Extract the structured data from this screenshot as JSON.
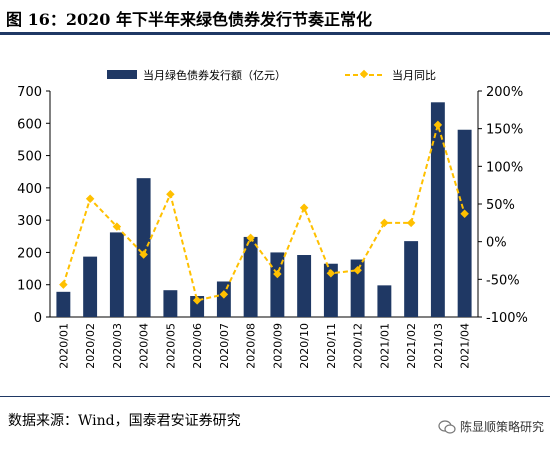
{
  "title": "图 16：2020 年下半年来绿色债券发行节奏正常化",
  "source": "数据来源：Wind，国泰君安证券研究",
  "watermark": "陈显顺策略研究",
  "chart_data": {
    "type": "bar",
    "categories": [
      "2020/01",
      "2020/02",
      "2020/03",
      "2020/04",
      "2020/05",
      "2020/06",
      "2020/07",
      "2020/08",
      "2020/09",
      "2020/10",
      "2020/11",
      "2020/12",
      "2021/01",
      "2021/02",
      "2021/03",
      "2021/04"
    ],
    "series": [
      {
        "name": "当月绿色债券发行额（亿元）",
        "type": "bar",
        "axis": "left",
        "color": "#1f3864",
        "values": [
          78,
          187,
          262,
          430,
          83,
          65,
          110,
          248,
          200,
          192,
          165,
          178,
          98,
          235,
          665,
          580
        ]
      },
      {
        "name": "当月同比",
        "type": "line",
        "axis": "right",
        "color": "#ffc000",
        "values": [
          -57,
          57,
          20,
          -17,
          63,
          -78,
          -70,
          5,
          -43,
          45,
          -42,
          -38,
          25,
          25,
          155,
          37
        ]
      }
    ],
    "y_left": {
      "min": 0,
      "max": 700,
      "ticks": [
        0,
        100,
        200,
        300,
        400,
        500,
        600,
        700
      ]
    },
    "y_right": {
      "min": -100,
      "max": 200,
      "ticks": [
        "-100%",
        "-50%",
        "0%",
        "50%",
        "100%",
        "150%",
        "200%"
      ]
    },
    "legend_position": "top",
    "grid": false
  }
}
